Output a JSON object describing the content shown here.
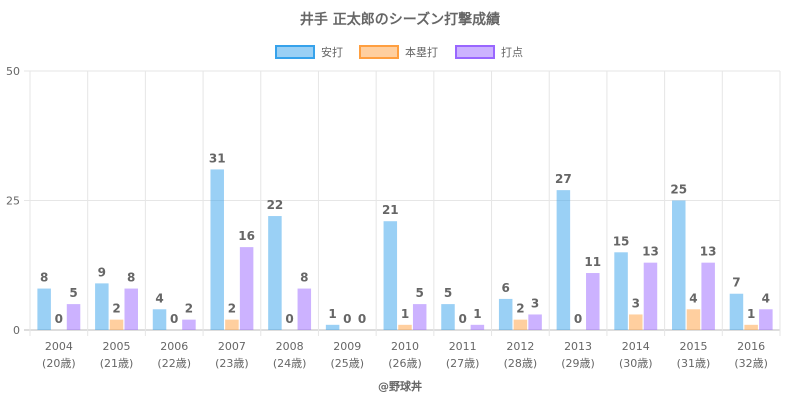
{
  "chart_data": {
    "type": "bar",
    "title": "井手 正太郎のシーズン打撃成績",
    "categories": [
      {
        "year": "2004",
        "age": "(20歳)"
      },
      {
        "year": "2005",
        "age": "(21歳)"
      },
      {
        "year": "2006",
        "age": "(22歳)"
      },
      {
        "year": "2007",
        "age": "(23歳)"
      },
      {
        "year": "2008",
        "age": "(24歳)"
      },
      {
        "year": "2009",
        "age": "(25歳)"
      },
      {
        "year": "2010",
        "age": "(26歳)"
      },
      {
        "year": "2011",
        "age": "(27歳)"
      },
      {
        "year": "2012",
        "age": "(28歳)"
      },
      {
        "year": "2013",
        "age": "(29歳)"
      },
      {
        "year": "2014",
        "age": "(30歳)"
      },
      {
        "year": "2015",
        "age": "(31歳)"
      },
      {
        "year": "2016",
        "age": "(32歳)"
      }
    ],
    "series": [
      {
        "name": "安打",
        "color": "#36A2EB",
        "values": [
          8,
          9,
          4,
          31,
          22,
          1,
          21,
          5,
          6,
          27,
          15,
          25,
          7
        ]
      },
      {
        "name": "本塁打",
        "color": "#FF9F40",
        "values": [
          0,
          2,
          0,
          2,
          0,
          0,
          1,
          0,
          2,
          0,
          3,
          4,
          1
        ]
      },
      {
        "name": "打点",
        "color": "#9966FF",
        "values": [
          5,
          8,
          2,
          16,
          8,
          0,
          5,
          1,
          3,
          11,
          13,
          13,
          4
        ]
      }
    ],
    "ylim": [
      0,
      50
    ],
    "yticks": [
      0,
      25,
      50
    ],
    "grid": true,
    "legend": "top-center"
  },
  "footer": "@野球丼"
}
